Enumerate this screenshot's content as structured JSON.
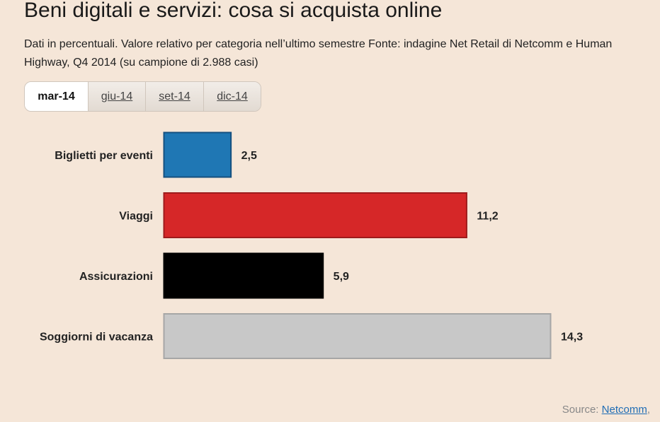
{
  "title": "Beni digitali e servizi: cosa si acquista online",
  "subtitle": "Dati in percentuali. Valore relativo per categoria nell’ultimo semestre Fonte: indagine Net Retail di Netcomm e Human Highway, Q4 2014 (su campione di 2.988 casi)",
  "tabs": [
    {
      "label": "mar-14",
      "active": true
    },
    {
      "label": "giu-14",
      "active": false
    },
    {
      "label": "set-14",
      "active": false
    },
    {
      "label": "dic-14",
      "active": false
    }
  ],
  "chart_data": {
    "type": "bar",
    "orientation": "horizontal",
    "categories": [
      "Biglietti per eventi",
      "Viaggi",
      "Assicurazioni",
      "Soggiorni di vacanza"
    ],
    "values": [
      2.5,
      11.2,
      5.9,
      14.3
    ],
    "value_labels": [
      "2,5",
      "11,2",
      "5,9",
      "14,3"
    ],
    "colors": [
      "#1f77b4",
      "#d62728",
      "#000000",
      "#c8c8c8"
    ],
    "xlim": [
      0,
      14.3
    ],
    "grid": false
  },
  "source": {
    "prefix": "Source: ",
    "link": "Netcomm",
    "suffix": ","
  }
}
